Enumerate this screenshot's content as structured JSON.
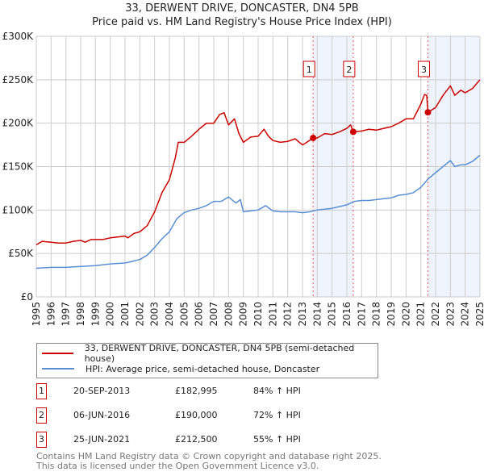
{
  "chart_data": {
    "type": "line",
    "title": "33, DERWENT DRIVE, DONCASTER, DN4 5PB",
    "subtitle": "Price paid vs. HM Land Registry's House Price Index (HPI)",
    "xlim": [
      1995,
      2025
    ],
    "ylim": [
      0,
      300000
    ],
    "y_ticks": [
      0,
      50000,
      100000,
      150000,
      200000,
      250000,
      300000
    ],
    "y_tick_labels": [
      "£0",
      "£50K",
      "£100K",
      "£150K",
      "£200K",
      "£250K",
      "£300K"
    ],
    "x_ticks": [
      "1995",
      "1996",
      "1997",
      "1998",
      "1999",
      "2000",
      "2001",
      "2002",
      "2003",
      "2004",
      "2005",
      "2006",
      "2007",
      "2008",
      "2009",
      "2010",
      "2011",
      "2012",
      "2013",
      "2014",
      "2015",
      "2016",
      "2017",
      "2018",
      "2019",
      "2020",
      "2021",
      "2022",
      "2023",
      "2024",
      "2025"
    ],
    "grid": true,
    "series": [
      {
        "name": "33, DERWENT DRIVE, DONCASTER, DN4 5PB (semi-detached house)",
        "color": "#cc0000",
        "x": [
          1995,
          1995.4,
          1996,
          1996.5,
          1997,
          1997.5,
          1998,
          1998.3,
          1998.7,
          1999,
          1999.5,
          2000,
          2000.5,
          2001,
          2001.2,
          2001.6,
          2002,
          2002.5,
          2003,
          2003.5,
          2004,
          2004.4,
          2004.6,
          2005,
          2005.5,
          2006,
          2006.5,
          2007,
          2007.4,
          2007.7,
          2008,
          2008.4,
          2008.7,
          2009,
          2009.5,
          2010,
          2010.4,
          2010.7,
          2011,
          2011.5,
          2012,
          2012.5,
          2013,
          2013.2,
          2013.72,
          2014,
          2014.5,
          2015,
          2015.5,
          2016,
          2016.25,
          2016.43,
          2017,
          2017.5,
          2018,
          2018.5,
          2019,
          2019.5,
          2020,
          2020.5,
          2021,
          2021.25,
          2021.4,
          2021.48,
          2022,
          2022.5,
          2023,
          2023.3,
          2023.7,
          2024,
          2024.5,
          2025
        ],
        "y": [
          60000,
          64000,
          63000,
          62000,
          62000,
          64000,
          65000,
          63000,
          66000,
          66000,
          66000,
          68000,
          69000,
          70000,
          68000,
          73000,
          75000,
          82000,
          98000,
          120000,
          135000,
          160000,
          178000,
          178000,
          185000,
          193000,
          200000,
          200000,
          210000,
          212000,
          198000,
          205000,
          188000,
          178000,
          184000,
          185000,
          193000,
          185000,
          180000,
          178000,
          179000,
          182000,
          175000,
          177000,
          182995,
          183000,
          188000,
          187000,
          190000,
          194000,
          198000,
          190000,
          191000,
          193000,
          192000,
          194000,
          196000,
          200000,
          205000,
          205000,
          222000,
          233000,
          232000,
          212500,
          218000,
          232000,
          243000,
          232000,
          238000,
          235000,
          240000,
          250000
        ]
      },
      {
        "name": "HPI: Average price, semi-detached house, Doncaster",
        "color": "#5b8fd4",
        "x": [
          1995,
          1996,
          1997,
          1998,
          1999,
          2000,
          2001,
          2001.5,
          2002,
          2002.5,
          2003,
          2003.5,
          2004,
          2004.5,
          2005,
          2005.5,
          2006,
          2006.5,
          2007,
          2007.5,
          2008,
          2008.5,
          2008.8,
          2009,
          2009.5,
          2010,
          2010.5,
          2011,
          2011.5,
          2012,
          2012.5,
          2013,
          2013.5,
          2014,
          2014.5,
          2015,
          2015.5,
          2016,
          2016.5,
          2017,
          2017.5,
          2018,
          2018.5,
          2019,
          2019.5,
          2020,
          2020.5,
          2021,
          2021.5,
          2022,
          2022.5,
          2023,
          2023.3,
          2023.7,
          2024,
          2024.5,
          2025
        ],
        "y": [
          33000,
          34000,
          34000,
          35000,
          36000,
          38000,
          39000,
          41000,
          43000,
          48000,
          57000,
          67000,
          75000,
          90000,
          97000,
          100000,
          102000,
          105000,
          110000,
          110000,
          115000,
          108000,
          112000,
          98000,
          99000,
          100000,
          105000,
          99000,
          98000,
          98000,
          98000,
          97000,
          98000,
          100000,
          101000,
          102000,
          104000,
          106000,
          110000,
          111000,
          111000,
          112000,
          113000,
          114000,
          117000,
          118000,
          120000,
          126000,
          136000,
          143000,
          150000,
          157000,
          150000,
          152000,
          152000,
          156000,
          163000
        ]
      }
    ],
    "sales": [
      {
        "id": "1",
        "date": "20-SEP-2013",
        "x": 2013.72,
        "price": 182995,
        "price_label": "£182,995",
        "hpi": "84% ↑ HPI"
      },
      {
        "id": "2",
        "date": "06-JUN-2016",
        "x": 2016.43,
        "price": 190000,
        "price_label": "£190,000",
        "hpi": "72% ↑ HPI"
      },
      {
        "id": "3",
        "date": "25-JUN-2021",
        "x": 2021.48,
        "price": 212500,
        "price_label": "£212,500",
        "hpi": "55% ↑ HPI"
      }
    ],
    "legend": "below"
  },
  "footer": {
    "line1": "Contains HM Land Registry data © Crown copyright and database right 2025.",
    "line2": "This data is licensed under the Open Government Licence v3.0."
  }
}
